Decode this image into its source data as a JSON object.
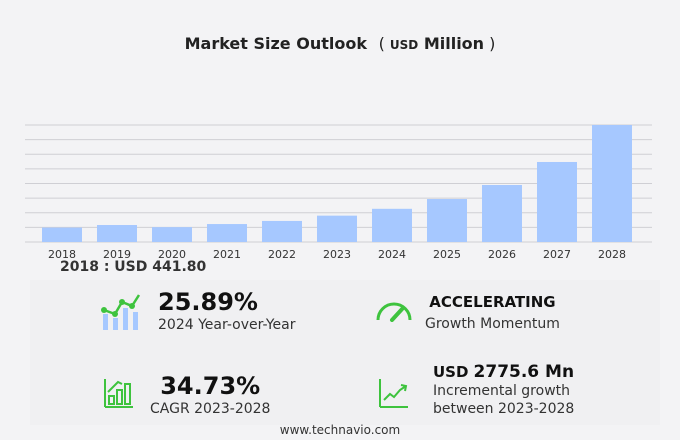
{
  "title": {
    "main": "Market Size Outlook",
    "unit_open": "( ",
    "unit_small": "USD",
    "unit_big": " Million",
    "unit_close": " )"
  },
  "note": "2018 : USD  441.80",
  "chart_data": {
    "type": "bar",
    "title": "Market Size Outlook (USD Million)",
    "categories": [
      "2018",
      "2019",
      "2020",
      "2021",
      "2022",
      "2023",
      "2024",
      "2025",
      "2026",
      "2027",
      "2028"
    ],
    "values": [
      441.8,
      520,
      455,
      550,
      645,
      807,
      1016,
      1316,
      1745,
      2450,
      3582.5
    ],
    "ylim": [
      0,
      3582.5
    ],
    "grid": true,
    "bar_color": "#a6c8ff"
  },
  "stats": {
    "yoy": {
      "value": "25.89%",
      "label": "2024 Year-over-Year",
      "icon": "growth-chart-icon"
    },
    "momentum": {
      "value": "ACCELERATING",
      "label": "Growth Momentum",
      "icon": "speedometer-icon"
    },
    "cagr": {
      "value": "34.73%",
      "label": "CAGR 2023-2028",
      "icon": "bar-growth-icon"
    },
    "incremental": {
      "prefix": "USD",
      "value": "2775.6 Mn",
      "label1": "Incremental growth",
      "label2": "between 2023-2028",
      "icon": "trend-line-icon"
    }
  },
  "accent": "#3ec33e",
  "footer": "www.technavio.com"
}
